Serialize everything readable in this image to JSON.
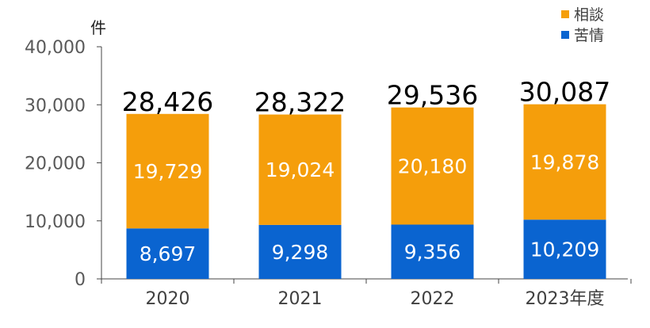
{
  "chart_data": {
    "type": "bar",
    "stacked": true,
    "categories": [
      "2020",
      "2021",
      "2022",
      "2023年度"
    ],
    "series": [
      {
        "name": "苦情",
        "values": [
          8697,
          9298,
          9356,
          10209
        ],
        "color": "#0a64d0"
      },
      {
        "name": "相談",
        "values": [
          19729,
          19024,
          20180,
          19878
        ],
        "color": "#f59e0b"
      }
    ],
    "totals": [
      28426,
      28322,
      29536,
      30087
    ],
    "yunit": "件",
    "ylim": [
      0,
      40000
    ],
    "yticks": [
      0,
      10000,
      20000,
      30000,
      40000
    ],
    "ytick_labels": [
      "0",
      "10,000",
      "20,000",
      "30,000",
      "40,000"
    ],
    "legend": {
      "position": "top-right",
      "items": [
        "相談",
        "苦情"
      ]
    },
    "grid": false
  }
}
